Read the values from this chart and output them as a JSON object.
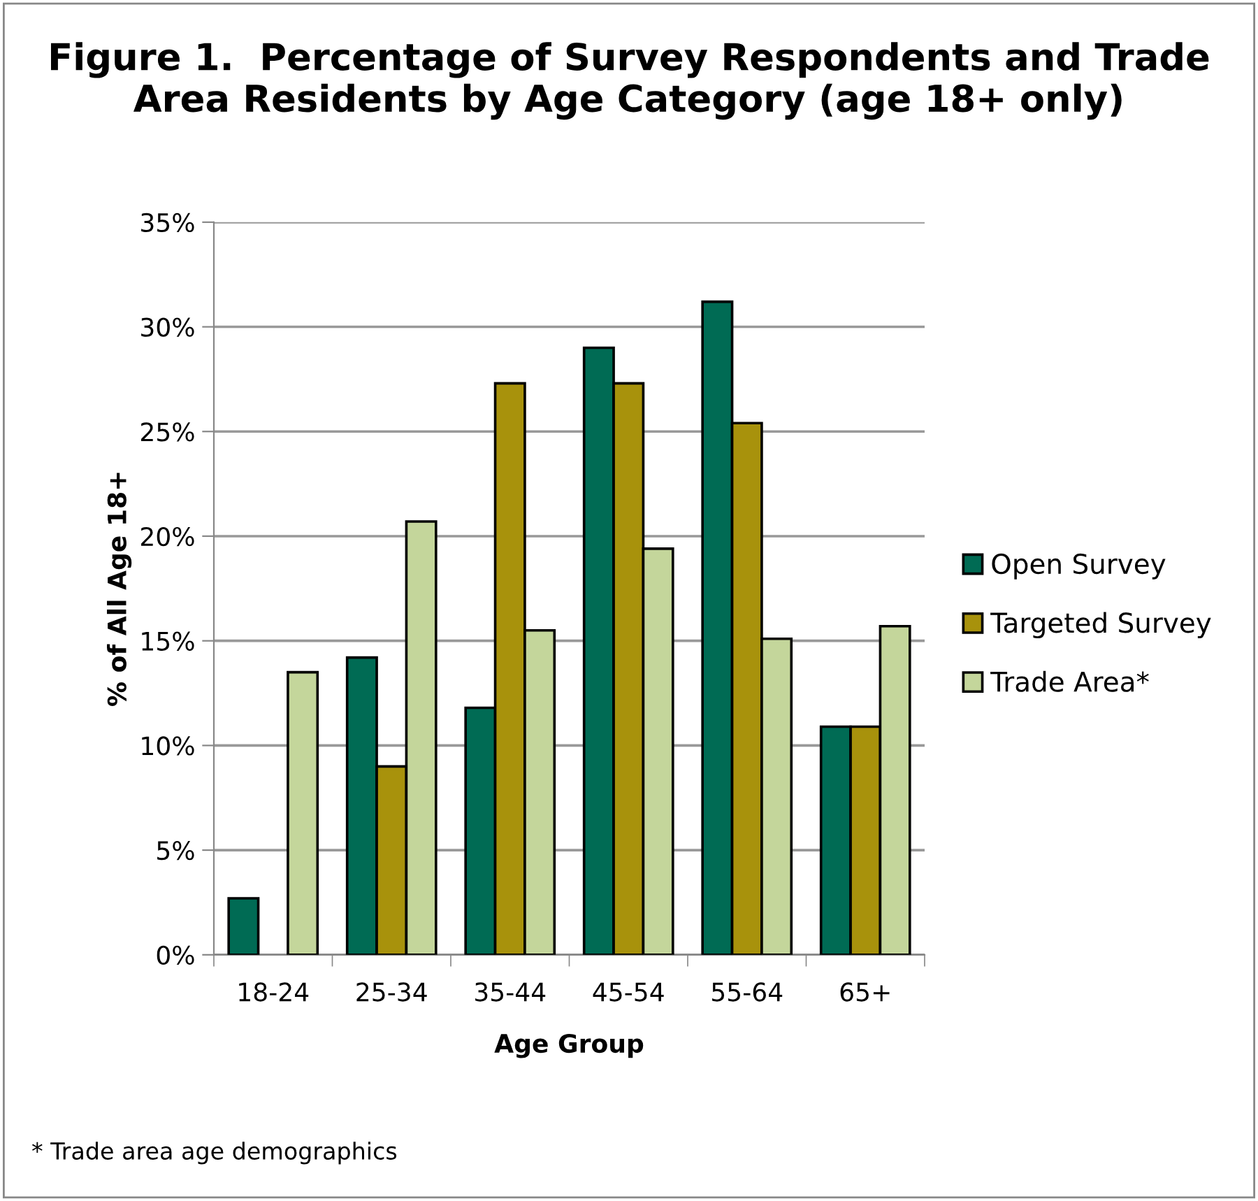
{
  "chart_data": {
    "type": "bar",
    "title": "Figure 1.  Percentage of Survey Respondents and Trade Area Residents by Age Category (age 18+ only)",
    "xlabel": "Age Group",
    "ylabel": "% of All Age 18+",
    "categories": [
      "18-24",
      "25-34",
      "35-44",
      "45-54",
      "55-64",
      "65+"
    ],
    "series": [
      {
        "name": "Open Survey",
        "color": "#006b54",
        "values": [
          2.7,
          14.2,
          11.8,
          29.0,
          31.2,
          10.9
        ]
      },
      {
        "name": "Targeted Survey",
        "color": "#a8920c",
        "values": [
          null,
          9.0,
          27.3,
          27.3,
          25.4,
          10.9
        ]
      },
      {
        "name": "Trade Area*",
        "color": "#c4d69b",
        "values": [
          13.5,
          20.7,
          15.5,
          19.4,
          15.1,
          15.7
        ]
      }
    ],
    "ylim": [
      0,
      35
    ],
    "yticks": [
      {
        "value": 0,
        "label": "0%"
      },
      {
        "value": 5,
        "label": "5%"
      },
      {
        "value": 10,
        "label": "10%"
      },
      {
        "value": 15,
        "label": "15%"
      },
      {
        "value": 20,
        "label": "20%"
      },
      {
        "value": 25,
        "label": "25%"
      },
      {
        "value": 30,
        "label": "30%"
      },
      {
        "value": 35,
        "label": "35%"
      }
    ],
    "grid": "y",
    "legend": "right",
    "annotations": [
      "* Trade area age demographics"
    ]
  }
}
